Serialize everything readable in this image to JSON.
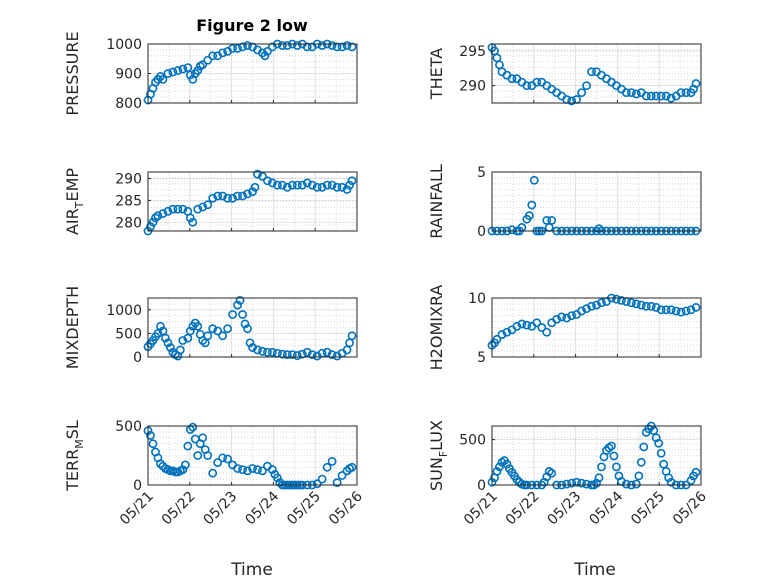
{
  "figure": {
    "title": "Figure 2 low"
  },
  "marker_color": "#0072BD",
  "chart_data": [
    {
      "type": "scatter",
      "ylabel": "PRESSURE",
      "yticks": [
        "800",
        "900",
        "1000"
      ],
      "ylim": [
        800,
        1000
      ],
      "xlim": [
        0,
        4.2
      ],
      "x": [
        0.0,
        0.05,
        0.1,
        0.15,
        0.2,
        0.25,
        0.3,
        0.4,
        0.5,
        0.6,
        0.7,
        0.8,
        0.85,
        0.9,
        0.95,
        1.0,
        1.05,
        1.1,
        1.2,
        1.3,
        1.4,
        1.5,
        1.6,
        1.7,
        1.8,
        1.9,
        2.0,
        2.1,
        2.2,
        2.3,
        2.35,
        2.4,
        2.5,
        2.6,
        2.7,
        2.8,
        2.9,
        3.0,
        3.1,
        3.2,
        3.3,
        3.4,
        3.5,
        3.6,
        3.7,
        3.8,
        3.9,
        4.0,
        4.1
      ],
      "y": [
        810,
        830,
        850,
        870,
        880,
        890,
        880,
        900,
        905,
        910,
        915,
        920,
        895,
        880,
        900,
        910,
        925,
        930,
        945,
        960,
        960,
        970,
        975,
        985,
        985,
        990,
        995,
        990,
        980,
        970,
        960,
        975,
        990,
        1000,
        995,
        995,
        1000,
        995,
        1000,
        990,
        990,
        1000,
        995,
        1000,
        995,
        990,
        990,
        995,
        990
      ]
    },
    {
      "type": "scatter",
      "ylabel": "THETA",
      "yticks": [
        "290",
        "295"
      ],
      "ylim": [
        287.5,
        296
      ],
      "xlim": [
        0,
        4.2
      ],
      "x": [
        0.0,
        0.05,
        0.1,
        0.15,
        0.2,
        0.3,
        0.4,
        0.5,
        0.6,
        0.7,
        0.8,
        0.9,
        1.0,
        1.1,
        1.2,
        1.3,
        1.4,
        1.5,
        1.6,
        1.7,
        1.8,
        1.9,
        2.0,
        2.1,
        2.2,
        2.3,
        2.4,
        2.5,
        2.6,
        2.7,
        2.8,
        2.9,
        3.0,
        3.1,
        3.2,
        3.3,
        3.4,
        3.5,
        3.6,
        3.7,
        3.8,
        3.9,
        4.0,
        4.05,
        4.1
      ],
      "y": [
        295.5,
        295,
        294,
        293,
        292,
        291.5,
        291,
        291,
        290.5,
        290,
        290,
        290.5,
        290.5,
        290,
        289.5,
        289,
        288.5,
        288,
        287.8,
        288,
        289,
        290,
        292,
        292,
        291.5,
        291,
        290.5,
        290,
        289.5,
        289,
        289,
        288.8,
        289,
        288.5,
        288.5,
        288.5,
        288.5,
        288.5,
        288.2,
        288.5,
        289,
        289,
        289,
        289.5,
        290.3
      ]
    },
    {
      "type": "scatter",
      "ylabel": "AIR_TEMP",
      "yticks": [
        "280",
        "285",
        "290"
      ],
      "ylim": [
        278,
        291.5
      ],
      "xlim": [
        0,
        4.2
      ],
      "x": [
        0.0,
        0.05,
        0.1,
        0.15,
        0.2,
        0.3,
        0.4,
        0.5,
        0.6,
        0.7,
        0.8,
        0.85,
        0.9,
        1.0,
        1.1,
        1.2,
        1.3,
        1.4,
        1.5,
        1.6,
        1.7,
        1.8,
        1.9,
        2.0,
        2.1,
        2.15,
        2.2,
        2.3,
        2.4,
        2.5,
        2.6,
        2.7,
        2.8,
        2.9,
        3.0,
        3.1,
        3.2,
        3.3,
        3.4,
        3.5,
        3.6,
        3.7,
        3.8,
        3.9,
        4.0,
        4.05,
        4.1
      ],
      "y": [
        278,
        279,
        280,
        281,
        281.5,
        282,
        282.5,
        283,
        283,
        283,
        282.5,
        281,
        280,
        283,
        283.5,
        284,
        285.5,
        286,
        286,
        285.5,
        285.5,
        286,
        286,
        286.5,
        287,
        288,
        291,
        290.5,
        289.5,
        289,
        288.5,
        288.5,
        288,
        288.5,
        288.5,
        288.5,
        289,
        288.5,
        288,
        288,
        288.5,
        288.5,
        288,
        288,
        287.5,
        288.5,
        289.5
      ]
    },
    {
      "type": "scatter",
      "ylabel": "RAINFALL",
      "yticks": [
        "0",
        "5"
      ],
      "ylim": [
        0,
        5
      ],
      "xlim": [
        0,
        4.2
      ],
      "x": [
        0.0,
        0.1,
        0.2,
        0.3,
        0.4,
        0.5,
        0.55,
        0.6,
        0.7,
        0.75,
        0.8,
        0.85,
        0.9,
        0.95,
        1.0,
        1.1,
        1.15,
        1.2,
        1.3,
        1.4,
        1.5,
        1.6,
        1.7,
        1.8,
        1.9,
        2.0,
        2.1,
        2.15,
        2.2,
        2.3,
        2.4,
        2.5,
        2.6,
        2.7,
        2.8,
        2.9,
        3.0,
        3.1,
        3.2,
        3.3,
        3.4,
        3.5,
        3.6,
        3.7,
        3.8,
        3.9,
        4.0,
        4.1
      ],
      "y": [
        0,
        0,
        0,
        0,
        0.1,
        0,
        0,
        0.3,
        1.0,
        1.3,
        2.2,
        4.3,
        0,
        0,
        0,
        0.9,
        0.3,
        0.9,
        0,
        0,
        0,
        0,
        0,
        0,
        0,
        0,
        0,
        0.2,
        0,
        0,
        0,
        0,
        0,
        0,
        0,
        0,
        0,
        0,
        0,
        0,
        0,
        0,
        0,
        0,
        0,
        0,
        0,
        0
      ]
    },
    {
      "type": "scatter",
      "ylabel": "MIXDEPTH",
      "yticks": [
        "0",
        "500",
        "1000"
      ],
      "ylim": [
        0,
        1250
      ],
      "xlim": [
        0,
        4.2
      ],
      "x": [
        0.0,
        0.05,
        0.1,
        0.15,
        0.2,
        0.25,
        0.3,
        0.35,
        0.4,
        0.45,
        0.5,
        0.55,
        0.6,
        0.65,
        0.7,
        0.8,
        0.85,
        0.9,
        0.95,
        1.0,
        1.05,
        1.1,
        1.15,
        1.2,
        1.3,
        1.4,
        1.5,
        1.6,
        1.7,
        1.8,
        1.85,
        1.9,
        1.95,
        2.0,
        2.05,
        2.1,
        2.2,
        2.3,
        2.4,
        2.5,
        2.6,
        2.7,
        2.8,
        2.9,
        3.0,
        3.1,
        3.2,
        3.3,
        3.4,
        3.5,
        3.6,
        3.7,
        3.8,
        3.9,
        4.0,
        4.05,
        4.1
      ],
      "y": [
        220,
        280,
        350,
        430,
        500,
        650,
        550,
        400,
        300,
        200,
        100,
        50,
        20,
        150,
        350,
        400,
        550,
        650,
        720,
        650,
        480,
        350,
        300,
        450,
        600,
        550,
        450,
        600,
        900,
        1100,
        1200,
        900,
        700,
        600,
        300,
        200,
        150,
        120,
        100,
        100,
        80,
        60,
        50,
        50,
        30,
        60,
        100,
        50,
        20,
        80,
        100,
        50,
        20,
        80,
        150,
        300,
        450
      ]
    },
    {
      "type": "scatter",
      "ylabel": "H2OMIXRA",
      "yticks": [
        "5",
        "10"
      ],
      "ylim": [
        5,
        10
      ],
      "xlim": [
        0,
        4.2
      ],
      "x": [
        0.0,
        0.05,
        0.1,
        0.2,
        0.3,
        0.4,
        0.5,
        0.6,
        0.7,
        0.8,
        0.9,
        1.0,
        1.1,
        1.2,
        1.3,
        1.4,
        1.5,
        1.6,
        1.7,
        1.8,
        1.9,
        2.0,
        2.1,
        2.2,
        2.3,
        2.4,
        2.5,
        2.6,
        2.7,
        2.8,
        2.9,
        3.0,
        3.1,
        3.2,
        3.3,
        3.4,
        3.5,
        3.6,
        3.7,
        3.8,
        3.9,
        4.0,
        4.1
      ],
      "y": [
        6,
        6.2,
        6.5,
        6.9,
        7.1,
        7.3,
        7.6,
        7.8,
        7.7,
        7.6,
        7.9,
        7.5,
        7.1,
        7.9,
        8.2,
        8.4,
        8.3,
        8.5,
        8.6,
        8.9,
        9.1,
        9.3,
        9.4,
        9.6,
        9.7,
        10,
        9.9,
        9.8,
        9.7,
        9.6,
        9.5,
        9.4,
        9.3,
        9.3,
        9.2,
        9.0,
        9.0,
        9.0,
        8.9,
        8.8,
        8.9,
        9.0,
        9.2
      ]
    },
    {
      "type": "scatter",
      "ylabel": "TERR_MSL",
      "yticks": [
        "0",
        "500"
      ],
      "ylim": [
        0,
        500
      ],
      "xlim": [
        0,
        4.2
      ],
      "x": [
        0.0,
        0.05,
        0.1,
        0.15,
        0.2,
        0.25,
        0.3,
        0.35,
        0.4,
        0.45,
        0.5,
        0.55,
        0.6,
        0.65,
        0.7,
        0.75,
        0.8,
        0.85,
        0.9,
        0.95,
        1.0,
        1.05,
        1.1,
        1.15,
        1.2,
        1.3,
        1.4,
        1.5,
        1.6,
        1.7,
        1.8,
        1.9,
        2.0,
        2.1,
        2.2,
        2.3,
        2.4,
        2.5,
        2.55,
        2.6,
        2.65,
        2.7,
        2.75,
        2.8,
        2.85,
        2.9,
        2.95,
        3.0,
        3.05,
        3.1,
        3.2,
        3.3,
        3.4,
        3.5,
        3.6,
        3.7,
        3.8,
        3.9,
        4.0,
        4.05,
        4.1
      ],
      "y": [
        460,
        420,
        350,
        280,
        230,
        180,
        160,
        140,
        130,
        120,
        120,
        110,
        110,
        120,
        130,
        170,
        330,
        470,
        490,
        390,
        250,
        350,
        400,
        300,
        250,
        100,
        190,
        230,
        220,
        170,
        140,
        130,
        120,
        140,
        130,
        120,
        160,
        130,
        90,
        60,
        20,
        0,
        0,
        0,
        0,
        0,
        0,
        0,
        0,
        0,
        0,
        0,
        10,
        50,
        150,
        200,
        20,
        80,
        120,
        140,
        150
      ]
    },
    {
      "type": "scatter",
      "ylabel": "SUN_FLUX",
      "yticks": [
        "0",
        "500"
      ],
      "ylim": [
        0,
        650
      ],
      "xlim": [
        0,
        4.2
      ],
      "x": [
        0.0,
        0.05,
        0.1,
        0.15,
        0.2,
        0.25,
        0.3,
        0.35,
        0.4,
        0.45,
        0.5,
        0.55,
        0.6,
        0.65,
        0.7,
        0.8,
        0.9,
        1.0,
        1.05,
        1.1,
        1.15,
        1.2,
        1.3,
        1.4,
        1.5,
        1.6,
        1.7,
        1.8,
        1.9,
        2.0,
        2.05,
        2.1,
        2.15,
        2.2,
        2.25,
        2.3,
        2.35,
        2.4,
        2.45,
        2.5,
        2.55,
        2.6,
        2.7,
        2.8,
        2.9,
        2.95,
        3.0,
        3.05,
        3.1,
        3.15,
        3.2,
        3.25,
        3.3,
        3.35,
        3.4,
        3.45,
        3.5,
        3.55,
        3.6,
        3.7,
        3.8,
        3.9,
        4.0,
        4.05,
        4.1
      ],
      "y": [
        30,
        80,
        150,
        200,
        250,
        270,
        230,
        180,
        140,
        100,
        60,
        30,
        10,
        0,
        0,
        0,
        0,
        0,
        30,
        90,
        150,
        130,
        0,
        0,
        10,
        20,
        30,
        20,
        10,
        0,
        0,
        20,
        80,
        200,
        310,
        380,
        410,
        430,
        320,
        200,
        100,
        40,
        10,
        0,
        10,
        100,
        250,
        420,
        580,
        620,
        650,
        600,
        520,
        460,
        350,
        230,
        150,
        80,
        30,
        0,
        0,
        0,
        50,
        100,
        140
      ]
    }
  ],
  "xaxis": {
    "label": "Time",
    "ticks": [
      "05/21",
      "05/22",
      "05/23",
      "05/24",
      "05/25",
      "05/26"
    ]
  }
}
